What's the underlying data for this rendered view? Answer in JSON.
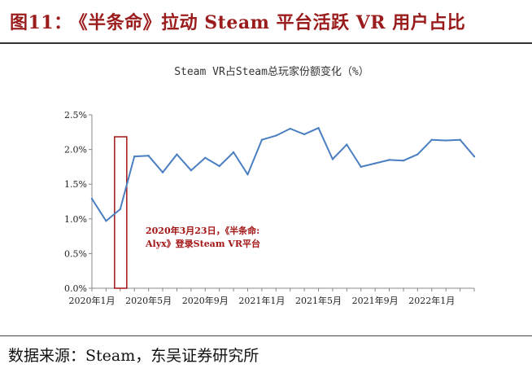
{
  "figure": {
    "number": "图11：",
    "title": "《半条命》拉动 Steam 平台活跃 VR 用户占比",
    "source": "数据来源：Steam，东吴证券研究所"
  },
  "colors": {
    "title": "#9b1c1c",
    "line": "#4a7fc1",
    "highlight": "#a31515",
    "axis": "#888888"
  },
  "chart_data": {
    "type": "line",
    "title": "Steam VR占Steam总玩家份额变化（%）",
    "xlabel": "",
    "ylabel": "",
    "ylim": [
      0,
      2.5
    ],
    "grid": false,
    "x": [
      "2020-01",
      "2020-02",
      "2020-03",
      "2020-04",
      "2020-05",
      "2020-06",
      "2020-07",
      "2020-08",
      "2020-09",
      "2020-10",
      "2020-11",
      "2020-12",
      "2021-01",
      "2021-02",
      "2021-03",
      "2021-04",
      "2021-05",
      "2021-06",
      "2021-07",
      "2021-08",
      "2021-09",
      "2021-10",
      "2021-11",
      "2021-12",
      "2022-01",
      "2022-02",
      "2022-03",
      "2022-04"
    ],
    "series": [
      {
        "values": [
          1.29,
          0.97,
          1.14,
          1.9,
          1.91,
          1.67,
          1.93,
          1.7,
          1.88,
          1.76,
          1.96,
          1.64,
          2.14,
          2.2,
          2.3,
          2.22,
          2.31,
          1.86,
          2.07,
          1.75,
          1.8,
          1.85,
          1.84,
          1.93,
          2.14,
          2.13,
          2.14,
          1.9
        ]
      }
    ],
    "y_ticks": [
      "0.0%",
      "0.5%",
      "1.0%",
      "1.5%",
      "2.0%",
      "2.5%"
    ],
    "x_tick_labels": [
      {
        "index": 0,
        "label": "2020年1月"
      },
      {
        "index": 4,
        "label": "2020年5月"
      },
      {
        "index": 8,
        "label": "2020年9月"
      },
      {
        "index": 12,
        "label": "2021年1月"
      },
      {
        "index": 16,
        "label": "2021年5月"
      },
      {
        "index": 20,
        "label": "2021年9月"
      },
      {
        "index": 24,
        "label": "2022年1月"
      }
    ],
    "highlight": {
      "index": 2
    },
    "annotation": [
      "2020年3月23日，《半条命:",
      "Alyx》登录Steam VR平台"
    ]
  }
}
